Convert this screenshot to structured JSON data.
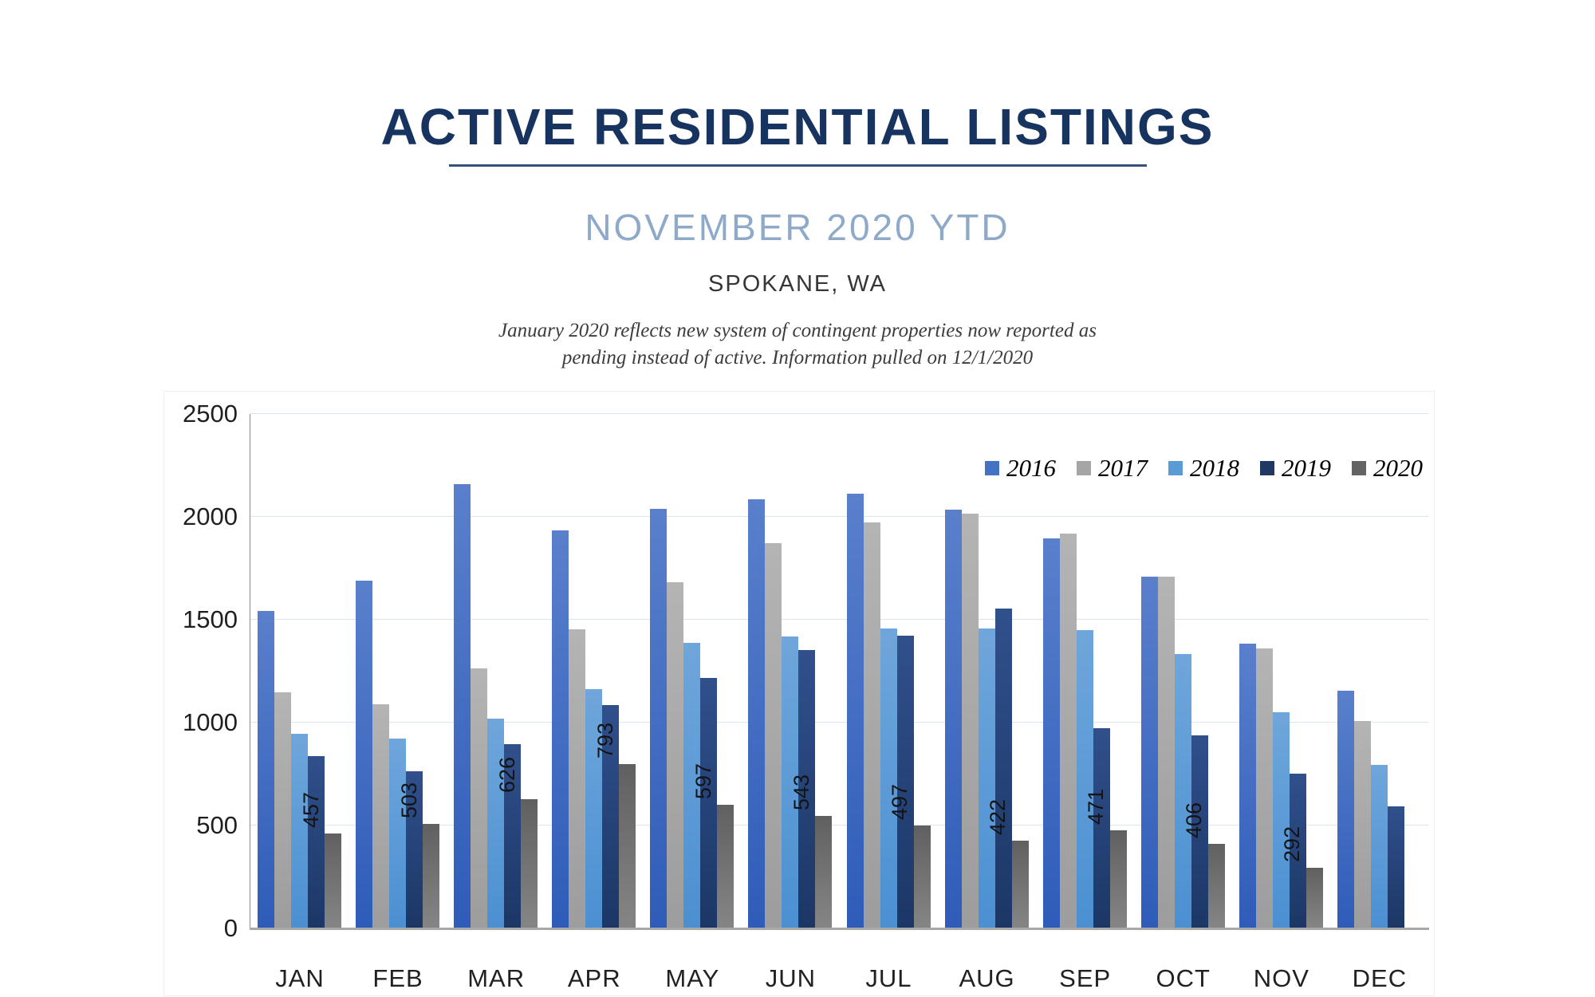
{
  "header": {
    "title": "ACTIVE RESIDENTIAL LISTINGS",
    "subtitle": "NOVEMBER 2020 YTD",
    "location": "SPOKANE, WA",
    "note_line1": "January 2020 reflects new system of contingent properties now reported as",
    "note_line2": "pending instead of active.  Information pulled on 12/1/2020"
  },
  "chart_data": {
    "type": "bar",
    "title": "Active residential listings by month and year",
    "xlabel": "",
    "ylabel": "",
    "categories": [
      "JAN",
      "FEB",
      "MAR",
      "APR",
      "MAY",
      "JUN",
      "JUL",
      "AUG",
      "SEP",
      "OCT",
      "NOV",
      "DEC"
    ],
    "series": [
      {
        "name": "2016",
        "color": "#4472C4",
        "color_top": "#5A80CC",
        "color_bottom": "#2E5CB8",
        "values": [
          1540,
          1685,
          2155,
          1930,
          2035,
          2080,
          2110,
          2030,
          1890,
          1705,
          1380,
          1150
        ]
      },
      {
        "name": "2017",
        "color": "#A5A5A5",
        "color_top": "#B4B4B4",
        "color_bottom": "#9D9D9D",
        "values": [
          1145,
          1085,
          1260,
          1450,
          1680,
          1870,
          1970,
          2010,
          1915,
          1705,
          1355,
          1005
        ]
      },
      {
        "name": "2018",
        "color": "#5B9BD5",
        "color_top": "#6FA6DB",
        "color_bottom": "#4B90D2",
        "values": [
          940,
          920,
          1015,
          1160,
          1385,
          1415,
          1455,
          1455,
          1445,
          1330,
          1045,
          790
        ]
      },
      {
        "name": "2019",
        "color": "#1F3864",
        "color_top": "#30508C",
        "color_bottom": "#1C3766",
        "values": [
          835,
          760,
          890,
          1080,
          1215,
          1350,
          1420,
          1550,
          970,
          935,
          750,
          590
        ]
      },
      {
        "name": "2020",
        "color": "#636363",
        "color_top": "#606060",
        "color_bottom": "#858585",
        "show_data_labels": true,
        "values": [
          457,
          503,
          626,
          793,
          597,
          543,
          497,
          422,
          471,
          406,
          292,
          null
        ]
      }
    ],
    "ylim": [
      0,
      2500
    ],
    "yticks": [
      0,
      500,
      1000,
      1500,
      2000,
      2500
    ],
    "grid": "horizontal",
    "legend_position": "top-right",
    "style": {
      "gridline_color": "#DCE4F2",
      "axis_color": "#A8A8A8",
      "tick_label_color": "#1F1F1F",
      "data_label_color": "#141414"
    }
  }
}
